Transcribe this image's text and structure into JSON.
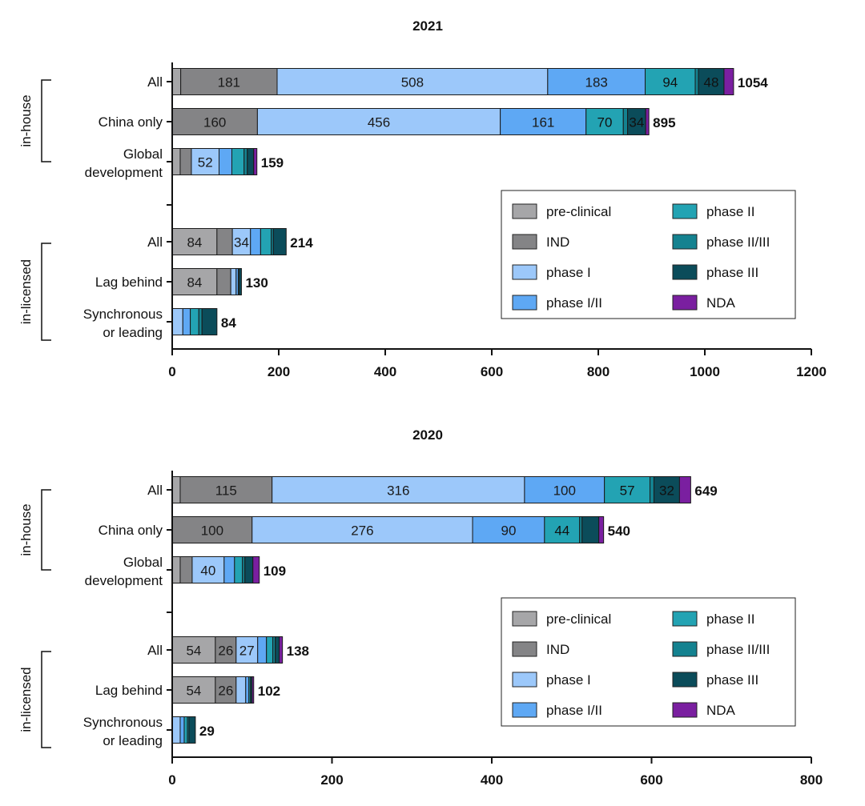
{
  "colors": {
    "preclinical": "#a6a6a8",
    "ind": "#848486",
    "phase1": "#9cc8fa",
    "phase1_2": "#5ea8f4",
    "phase2": "#23a3b3",
    "phase2_3": "#148290",
    "phase3": "#0b4c5a",
    "nda": "#7a1fa0"
  },
  "chart_data": [
    {
      "type": "bar",
      "orientation": "horizontal",
      "stacked": true,
      "title": "2021",
      "xlim": [
        0,
        1200
      ],
      "xticks": [
        "0",
        "200",
        "400",
        "600",
        "800",
        "1000",
        "1200"
      ],
      "groups": [
        {
          "label": "in-house",
          "rows": [
            0,
            1,
            2
          ]
        },
        {
          "label": "in-licensed",
          "rows": [
            3,
            4,
            5
          ]
        }
      ],
      "legend": {
        "placement": "lower-right",
        "entries": [
          {
            "key": "preclinical",
            "label": "pre-clinical"
          },
          {
            "key": "ind",
            "label": "IND"
          },
          {
            "key": "phase1",
            "label": "phase I"
          },
          {
            "key": "phase1_2",
            "label": "phase I/II"
          },
          {
            "key": "phase2",
            "label": "phase II"
          },
          {
            "key": "phase2_3",
            "label": "phase II/III"
          },
          {
            "key": "phase3",
            "label": "phase III"
          },
          {
            "key": "nda",
            "label": "NDA"
          }
        ]
      },
      "rows": [
        {
          "label": [
            "All"
          ],
          "total": "1054",
          "segments": [
            {
              "stage": "preclinical",
              "value": 16
            },
            {
              "stage": "ind",
              "value": 181,
              "label": "181"
            },
            {
              "stage": "phase1",
              "value": 508,
              "label": "508"
            },
            {
              "stage": "phase1_2",
              "value": 183,
              "label": "183"
            },
            {
              "stage": "phase2",
              "value": 94,
              "label": "94"
            },
            {
              "stage": "phase2_3",
              "value": 6
            },
            {
              "stage": "phase3",
              "value": 48,
              "label": "48"
            },
            {
              "stage": "nda",
              "value": 18
            }
          ]
        },
        {
          "label": [
            "China only"
          ],
          "total": "895",
          "segments": [
            {
              "stage": "ind",
              "value": 160,
              "label": "160"
            },
            {
              "stage": "phase1",
              "value": 456,
              "label": "456"
            },
            {
              "stage": "phase1_2",
              "value": 161,
              "label": "161"
            },
            {
              "stage": "phase2",
              "value": 70,
              "label": "70"
            },
            {
              "stage": "phase2_3",
              "value": 8
            },
            {
              "stage": "phase3",
              "value": 34,
              "label": "34"
            },
            {
              "stage": "nda",
              "value": 6
            }
          ]
        },
        {
          "label": [
            "Global",
            "development"
          ],
          "total": "159",
          "segments": [
            {
              "stage": "preclinical",
              "value": 15
            },
            {
              "stage": "ind",
              "value": 21
            },
            {
              "stage": "phase1",
              "value": 52,
              "label": "52"
            },
            {
              "stage": "phase1_2",
              "value": 24
            },
            {
              "stage": "phase2",
              "value": 23
            },
            {
              "stage": "phase2_3",
              "value": 6
            },
            {
              "stage": "phase3",
              "value": 12
            },
            {
              "stage": "nda",
              "value": 6
            }
          ]
        },
        {
          "label": [
            "All"
          ],
          "total": "214",
          "segments": [
            {
              "stage": "preclinical",
              "value": 84,
              "label": "84"
            },
            {
              "stage": "ind",
              "value": 29
            },
            {
              "stage": "phase1",
              "value": 34,
              "label": "34"
            },
            {
              "stage": "phase1_2",
              "value": 19
            },
            {
              "stage": "phase2",
              "value": 20
            },
            {
              "stage": "phase2_3",
              "value": 4
            },
            {
              "stage": "phase3",
              "value": 24
            }
          ]
        },
        {
          "label": [
            "Lag behind"
          ],
          "total": "130",
          "segments": [
            {
              "stage": "preclinical",
              "value": 84,
              "label": "84"
            },
            {
              "stage": "ind",
              "value": 26
            },
            {
              "stage": "phase1",
              "value": 10
            },
            {
              "stage": "phase1_2",
              "value": 4
            },
            {
              "stage": "phase2",
              "value": 2
            },
            {
              "stage": "phase3",
              "value": 4
            }
          ]
        },
        {
          "label": [
            "Synchronous",
            "or leading"
          ],
          "total": "84",
          "segments": [
            {
              "stage": "phase1",
              "value": 20
            },
            {
              "stage": "phase1_2",
              "value": 14
            },
            {
              "stage": "phase2",
              "value": 16
            },
            {
              "stage": "phase2_3",
              "value": 6
            },
            {
              "stage": "phase3",
              "value": 28
            }
          ]
        }
      ]
    },
    {
      "type": "bar",
      "orientation": "horizontal",
      "stacked": true,
      "title": "2020",
      "xlim": [
        0,
        800
      ],
      "xticks": [
        "0",
        "200",
        "400",
        "600",
        "800"
      ],
      "groups": [
        {
          "label": "in-house",
          "rows": [
            0,
            1,
            2
          ]
        },
        {
          "label": "in-licensed",
          "rows": [
            3,
            4,
            5
          ]
        }
      ],
      "legend": {
        "placement": "lower-right",
        "entries": [
          {
            "key": "preclinical",
            "label": "pre-clinical"
          },
          {
            "key": "ind",
            "label": "IND"
          },
          {
            "key": "phase1",
            "label": "phase I"
          },
          {
            "key": "phase1_2",
            "label": "phase I/II"
          },
          {
            "key": "phase2",
            "label": "phase II"
          },
          {
            "key": "phase2_3",
            "label": "phase II/III"
          },
          {
            "key": "phase3",
            "label": "phase III"
          },
          {
            "key": "nda",
            "label": "NDA"
          }
        ]
      },
      "rows": [
        {
          "label": [
            "All"
          ],
          "total": "649",
          "segments": [
            {
              "stage": "preclinical",
              "value": 10
            },
            {
              "stage": "ind",
              "value": 115,
              "label": "115"
            },
            {
              "stage": "phase1",
              "value": 316,
              "label": "316"
            },
            {
              "stage": "phase1_2",
              "value": 100,
              "label": "100"
            },
            {
              "stage": "phase2",
              "value": 57,
              "label": "57"
            },
            {
              "stage": "phase2_3",
              "value": 5
            },
            {
              "stage": "phase3",
              "value": 32,
              "label": "32"
            },
            {
              "stage": "nda",
              "value": 14
            }
          ]
        },
        {
          "label": [
            "China only"
          ],
          "total": "540",
          "segments": [
            {
              "stage": "ind",
              "value": 100,
              "label": "100"
            },
            {
              "stage": "phase1",
              "value": 276,
              "label": "276"
            },
            {
              "stage": "phase1_2",
              "value": 90,
              "label": "90"
            },
            {
              "stage": "phase2",
              "value": 44,
              "label": "44"
            },
            {
              "stage": "phase2_3",
              "value": 3
            },
            {
              "stage": "phase3",
              "value": 21
            },
            {
              "stage": "nda",
              "value": 6
            }
          ]
        },
        {
          "label": [
            "Global",
            "development"
          ],
          "total": "109",
          "segments": [
            {
              "stage": "preclinical",
              "value": 10
            },
            {
              "stage": "ind",
              "value": 15
            },
            {
              "stage": "phase1",
              "value": 40,
              "label": "40"
            },
            {
              "stage": "phase1_2",
              "value": 13
            },
            {
              "stage": "phase2",
              "value": 10
            },
            {
              "stage": "phase2_3",
              "value": 3
            },
            {
              "stage": "phase3",
              "value": 10
            },
            {
              "stage": "nda",
              "value": 8
            }
          ]
        },
        {
          "label": [
            "All"
          ],
          "total": "138",
          "segments": [
            {
              "stage": "preclinical",
              "value": 54,
              "label": "54"
            },
            {
              "stage": "ind",
              "value": 26,
              "label": "26"
            },
            {
              "stage": "phase1",
              "value": 27,
              "label": "27"
            },
            {
              "stage": "phase1_2",
              "value": 11
            },
            {
              "stage": "phase2",
              "value": 8
            },
            {
              "stage": "phase2_3",
              "value": 3
            },
            {
              "stage": "phase3",
              "value": 5
            },
            {
              "stage": "nda",
              "value": 4
            }
          ]
        },
        {
          "label": [
            "Lag behind"
          ],
          "total": "102",
          "segments": [
            {
              "stage": "preclinical",
              "value": 54,
              "label": "54"
            },
            {
              "stage": "ind",
              "value": 26,
              "label": "26"
            },
            {
              "stage": "phase1",
              "value": 12
            },
            {
              "stage": "phase1_2",
              "value": 4
            },
            {
              "stage": "phase2",
              "value": 2
            },
            {
              "stage": "phase3",
              "value": 2
            },
            {
              "stage": "nda",
              "value": 2
            }
          ]
        },
        {
          "label": [
            "Synchronous",
            "or leading"
          ],
          "total": "29",
          "segments": [
            {
              "stage": "phase1",
              "value": 10
            },
            {
              "stage": "phase1_2",
              "value": 5
            },
            {
              "stage": "phase2",
              "value": 4
            },
            {
              "stage": "phase2_3",
              "value": 2
            },
            {
              "stage": "phase3",
              "value": 8
            }
          ]
        }
      ]
    }
  ]
}
